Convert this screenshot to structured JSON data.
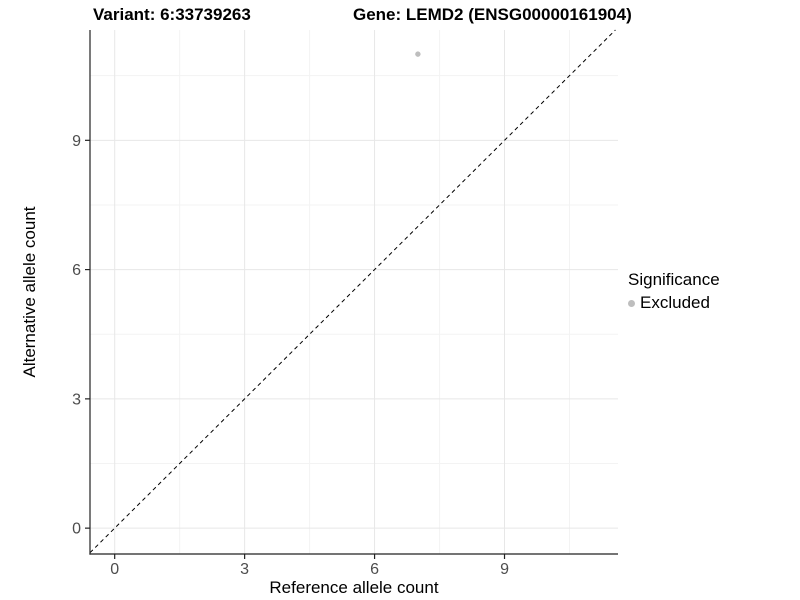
{
  "chart_data": {
    "type": "scatter",
    "title_left": "Variant: 6:33739263",
    "title_right": "Gene: LEMD2 (ENSG00000161904)",
    "xlabel": "Reference allele count",
    "ylabel": "Alternative allele count",
    "xlim": [
      -0.57,
      11.62
    ],
    "ylim": [
      -0.6,
      11.56
    ],
    "x_ticks": [
      0,
      3,
      6,
      9
    ],
    "y_ticks": [
      0,
      3,
      6,
      9
    ],
    "grid": "major+minor",
    "reference_line": {
      "type": "identity",
      "style": "dashed",
      "color": "#000000"
    },
    "series": [
      {
        "name": "Excluded",
        "color": "#bebebe",
        "points": [
          {
            "x": 7,
            "y": 11
          }
        ]
      }
    ],
    "legend": {
      "title": "Significance",
      "position": "right",
      "entries": [
        {
          "label": "Excluded",
          "color": "#bebebe"
        }
      ]
    },
    "colors": {
      "grid_major": "#e7e7e7",
      "grid_minor": "#f3f3f3",
      "axis_line": "#222222",
      "tick_label": "#4d4d4d"
    }
  }
}
